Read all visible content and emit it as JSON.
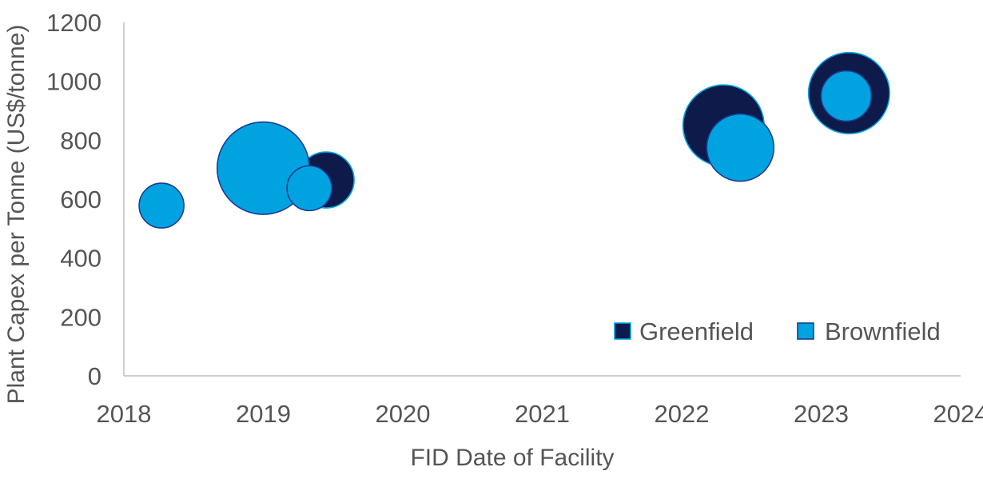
{
  "chart_data": {
    "type": "bubble",
    "title": "",
    "xlabel": "FID Date of Facility",
    "ylabel": "Plant Capex per Tonne (US$/tonne)",
    "xlim": [
      2018,
      2024
    ],
    "ylim": [
      0,
      1200
    ],
    "x_ticks": [
      "2018",
      "2019",
      "2020",
      "2021",
      "2022",
      "2023",
      "2024"
    ],
    "y_ticks": [
      "0",
      "200",
      "400",
      "600",
      "800",
      "1000",
      "1200"
    ],
    "grid": false,
    "legend": "bottom-right",
    "series": [
      {
        "name": "Greenfield",
        "color": "#0d1a4a",
        "points": [
          {
            "x": 2019.45,
            "y": 665,
            "size": 1.0
          },
          {
            "x": 2022.3,
            "y": 850,
            "size": 1.45
          },
          {
            "x": 2023.2,
            "y": 960,
            "size": 1.45
          }
        ]
      },
      {
        "name": "Brownfield",
        "color": "#00a3e0",
        "points": [
          {
            "x": 2018.27,
            "y": 578,
            "size": 0.8
          },
          {
            "x": 2019.0,
            "y": 705,
            "size": 1.65
          },
          {
            "x": 2019.33,
            "y": 637,
            "size": 0.8
          },
          {
            "x": 2022.42,
            "y": 775,
            "size": 1.2
          },
          {
            "x": 2023.18,
            "y": 950,
            "size": 0.9
          }
        ]
      }
    ]
  }
}
